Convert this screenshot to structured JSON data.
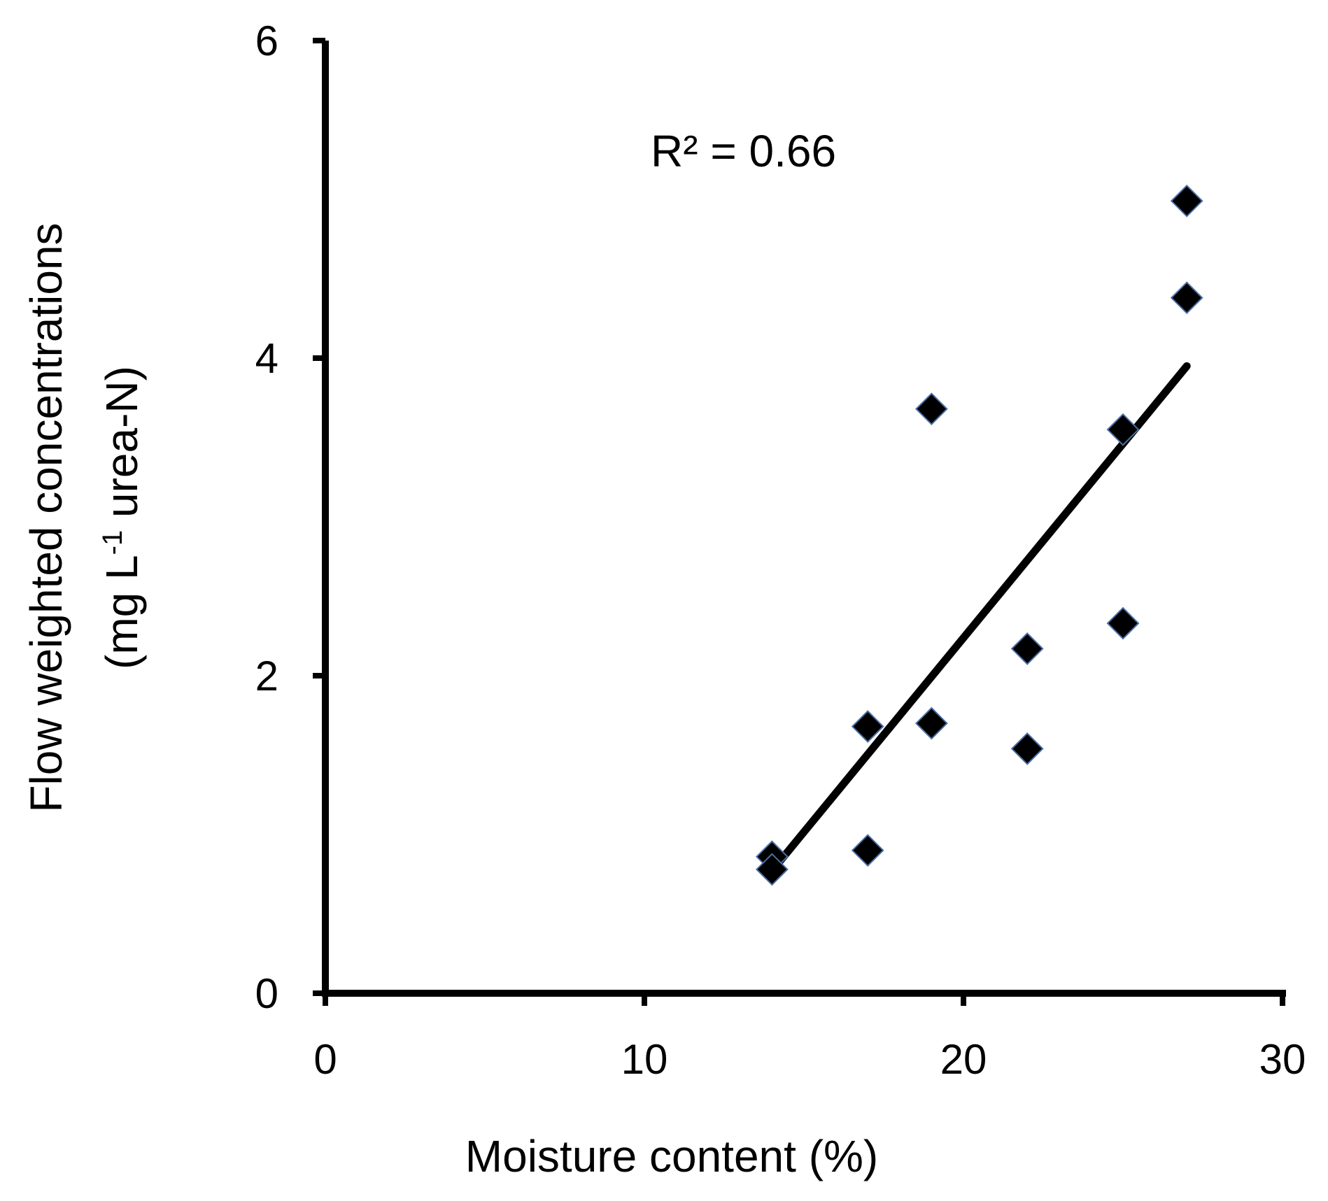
{
  "chart_data": {
    "type": "scatter",
    "xlabel": "Moisture content (%)",
    "ylabel_line1": "Flow weighted concentrations",
    "ylabel_line2_prefix": "(mg L",
    "ylabel_line2_sup": "-1",
    "ylabel_line2_suffix": " urea-N)",
    "annotation": "R² = 0.66",
    "xlim": [
      0,
      30
    ],
    "ylim": [
      0,
      6
    ],
    "xticks": [
      0,
      10,
      20,
      30
    ],
    "yticks": [
      0,
      2,
      4,
      6
    ],
    "grid": false,
    "series": [
      {
        "marker": "diamond",
        "color": "#000000",
        "edge_color": "#4a6fa5",
        "points": [
          {
            "x": 14,
            "y": 0.86
          },
          {
            "x": 14,
            "y": 0.78
          },
          {
            "x": 17,
            "y": 0.9
          },
          {
            "x": 17,
            "y": 1.68
          },
          {
            "x": 19,
            "y": 1.7
          },
          {
            "x": 19,
            "y": 3.68
          },
          {
            "x": 22,
            "y": 1.54
          },
          {
            "x": 22,
            "y": 2.17
          },
          {
            "x": 25,
            "y": 2.33
          },
          {
            "x": 25,
            "y": 3.55
          },
          {
            "x": 27,
            "y": 4.38
          },
          {
            "x": 27,
            "y": 4.99
          }
        ]
      }
    ],
    "trendline": {
      "x": [
        14.2,
        27
      ],
      "y": [
        0.82,
        3.95
      ]
    }
  }
}
